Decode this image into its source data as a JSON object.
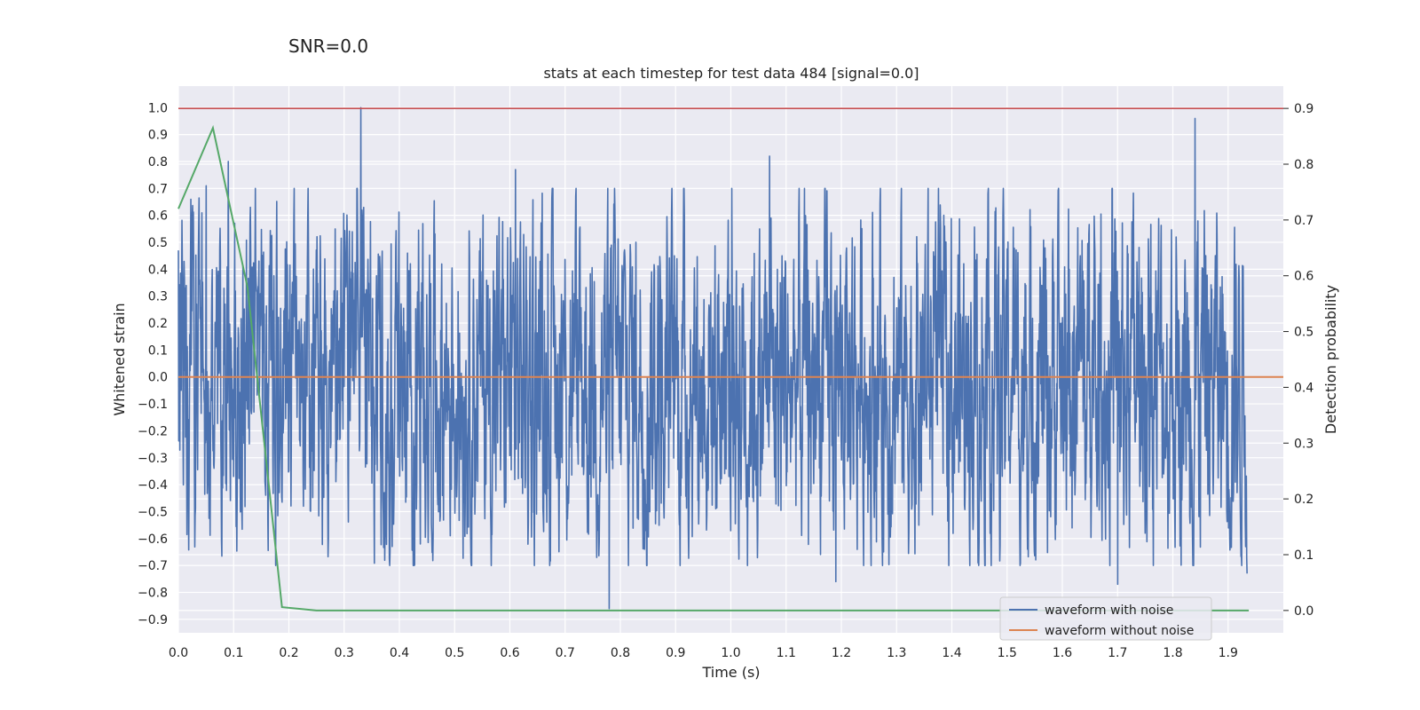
{
  "suptitle": "SNR=0.0",
  "chart_data": {
    "type": "line",
    "title": "stats at each timestep for test data 484 [signal=0.0]",
    "xlabel": "Time (s)",
    "ylabel": "Whitened strain",
    "ylabel_right": "Detection probability",
    "xlim": [
      0.0,
      2.0
    ],
    "ylim": [
      -0.95,
      1.08
    ],
    "ylim_right": [
      -0.04,
      0.94
    ],
    "x_ticks": [
      "0.0",
      "0.1",
      "0.2",
      "0.3",
      "0.4",
      "0.5",
      "0.6",
      "0.7",
      "0.8",
      "0.9",
      "1.0",
      "1.1",
      "1.2",
      "1.3",
      "1.4",
      "1.5",
      "1.6",
      "1.7",
      "1.8",
      "1.9"
    ],
    "y_ticks": [
      "1.0",
      "0.9",
      "0.8",
      "0.7",
      "0.6",
      "0.5",
      "0.4",
      "0.3",
      "0.2",
      "0.1",
      "0.0",
      "−0.1",
      "−0.2",
      "−0.3",
      "−0.4",
      "−0.5",
      "−0.6",
      "−0.7",
      "−0.8",
      "−0.9"
    ],
    "y_right_ticks": [
      "0.9",
      "0.8",
      "0.7",
      "0.6",
      "0.5",
      "0.4",
      "0.3",
      "0.2",
      "0.1",
      "0.0"
    ],
    "grid": true,
    "legend_position": "lower-right",
    "series": [
      {
        "name": "waveform with noise",
        "color": "#4c72b0",
        "axis": "left",
        "description_note": "dense noisy whitened strain, approx. 4096 samples over 0-2 s",
        "peaks": [
          {
            "x": 0.0,
            "y": 0.47
          },
          {
            "x": 0.05,
            "y": 0.71
          },
          {
            "x": 0.09,
            "y": 0.8
          },
          {
            "x": 0.33,
            "y": 1.0
          },
          {
            "x": 0.61,
            "y": 0.77
          },
          {
            "x": 1.07,
            "y": 0.82
          },
          {
            "x": 1.84,
            "y": 0.96
          }
        ],
        "troughs": [
          {
            "x": 0.78,
            "y": -0.86
          },
          {
            "x": 1.19,
            "y": -0.76
          },
          {
            "x": 1.7,
            "y": -0.77
          },
          {
            "x": 1.96,
            "y": -0.73
          }
        ]
      },
      {
        "name": "waveform without noise",
        "color": "#dd8452",
        "axis": "left",
        "x": [
          0.0,
          2.0
        ],
        "y": [
          0.0,
          0.0
        ]
      },
      {
        "name": "",
        "color": "#55a868",
        "axis": "right",
        "x": [
          0.0,
          0.0625,
          0.125,
          0.1875,
          0.25,
          0.3125,
          1.9375
        ],
        "y": [
          0.72,
          0.865,
          0.58,
          0.006,
          0.0,
          0.0,
          0.0
        ]
      },
      {
        "name": "",
        "color": "#c44e52",
        "axis": "right",
        "x": [
          0.0,
          2.0
        ],
        "y": [
          0.9,
          0.9
        ]
      }
    ]
  }
}
